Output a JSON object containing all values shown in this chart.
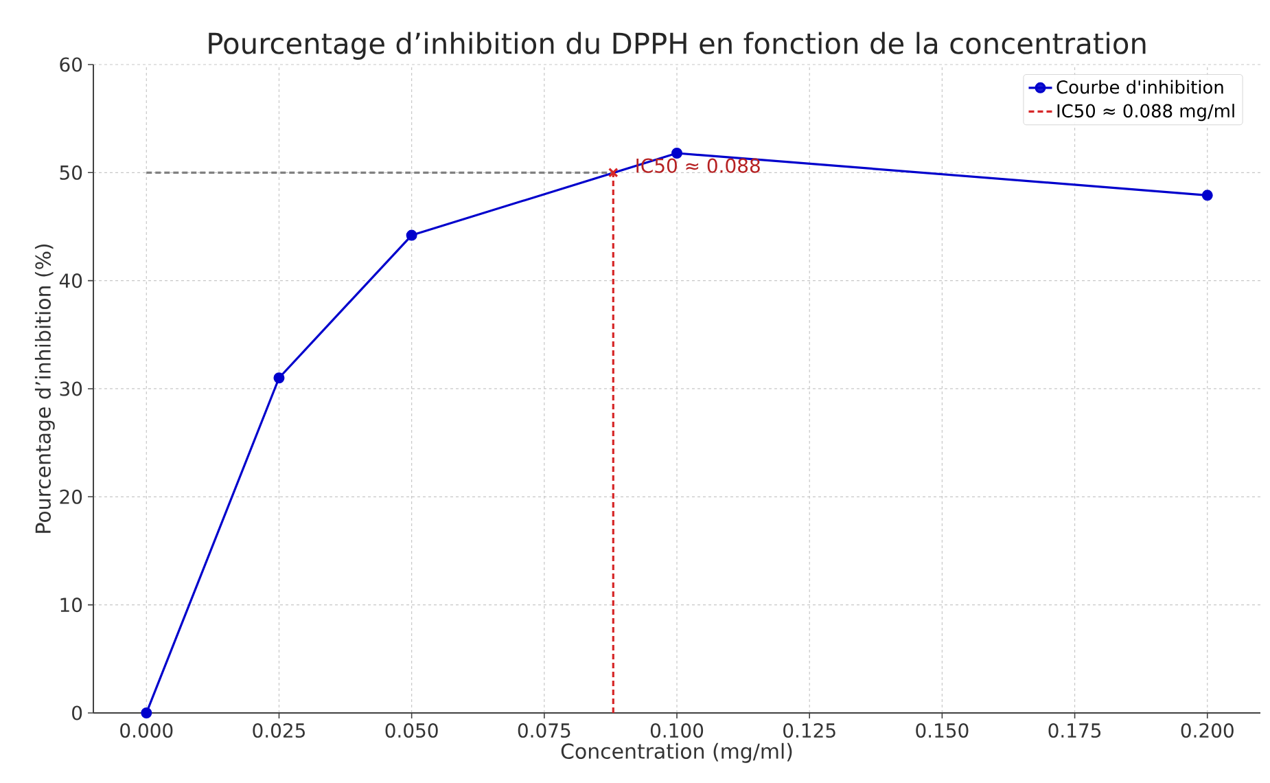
{
  "chart_data": {
    "type": "line",
    "title": "Pourcentage d’inhibition du DPPH en fonction de la concentration",
    "xlabel": "Concentration (mg/ml)",
    "ylabel": "Pourcentage d’inhibition (%)",
    "xlim": [
      -0.01,
      0.21
    ],
    "ylim": [
      0,
      60
    ],
    "xticks": [
      {
        "value": 0,
        "label": "0.000"
      },
      {
        "value": 0.025,
        "label": "0.025"
      },
      {
        "value": 0.05,
        "label": "0.050"
      },
      {
        "value": 0.075,
        "label": "0.075"
      },
      {
        "value": 0.1,
        "label": "0.100"
      },
      {
        "value": 0.125,
        "label": "0.125"
      },
      {
        "value": 0.15,
        "label": "0.150"
      },
      {
        "value": 0.175,
        "label": "0.175"
      },
      {
        "value": 0.2,
        "label": "0.200"
      }
    ],
    "yticks": [
      0,
      10,
      20,
      30,
      40,
      50,
      60
    ],
    "grid": true,
    "legend": "top right",
    "series": [
      {
        "name": "Courbe d'inhibition",
        "color": "#0000cc",
        "marker": "circle",
        "line_style": "solid",
        "x": [
          0,
          0.025,
          0.05,
          0.1,
          0.2
        ],
        "values": [
          0,
          31,
          44.2,
          51.8,
          47.9
        ]
      },
      {
        "name": "IC50 ≈ 0.088 mg/ml",
        "type": "line",
        "color": "#d62728",
        "marker": "none",
        "line_style": "dashed",
        "x": [
          0.088,
          0.088
        ],
        "values": [
          0,
          50
        ]
      },
      {
        "type": "line",
        "color": "#808080",
        "marker": "none",
        "line_style": "dashed",
        "x": [
          0,
          0.088
        ],
        "values": [
          50,
          50
        ]
      },
      {
        "type": "scatter",
        "color": "#d62728",
        "marker": "cross",
        "x": [
          0.088
        ],
        "values": [
          50
        ]
      }
    ],
    "annotations": [
      {
        "text": "IC50 ≈ 0.088",
        "x": 0.092,
        "y": 50
      }
    ]
  }
}
